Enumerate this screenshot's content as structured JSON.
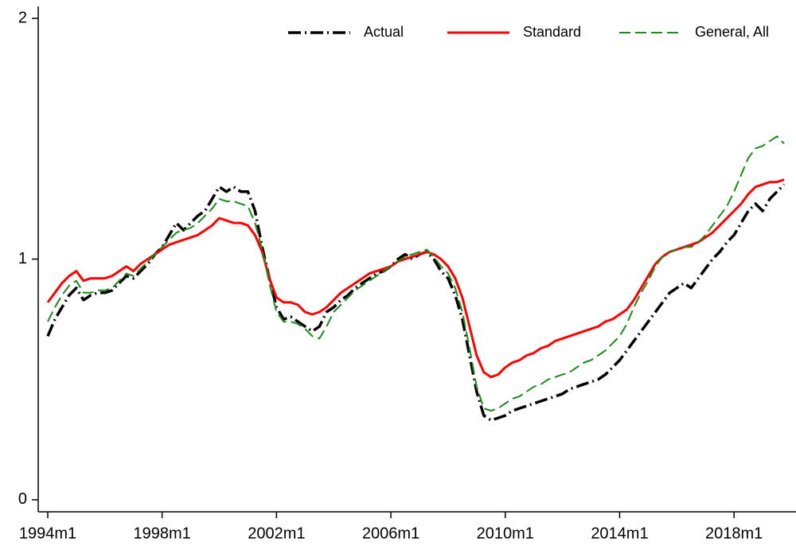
{
  "chart_data": {
    "type": "line",
    "x": [
      "1994m1",
      "1994m4",
      "1994m7",
      "1994m10",
      "1995m1",
      "1995m4",
      "1995m7",
      "1995m10",
      "1996m1",
      "1996m4",
      "1996m7",
      "1996m10",
      "1997m1",
      "1997m4",
      "1997m7",
      "1997m10",
      "1998m1",
      "1998m4",
      "1998m7",
      "1998m10",
      "1999m1",
      "1999m4",
      "1999m7",
      "1999m10",
      "2000m1",
      "2000m4",
      "2000m7",
      "2000m10",
      "2001m1",
      "2001m4",
      "2001m7",
      "2001m10",
      "2002m1",
      "2002m4",
      "2002m7",
      "2002m10",
      "2003m1",
      "2003m4",
      "2003m7",
      "2003m10",
      "2004m1",
      "2004m4",
      "2004m7",
      "2004m10",
      "2005m1",
      "2005m4",
      "2005m7",
      "2005m10",
      "2006m1",
      "2006m4",
      "2006m7",
      "2006m10",
      "2007m1",
      "2007m4",
      "2007m7",
      "2007m10",
      "2008m1",
      "2008m4",
      "2008m7",
      "2008m10",
      "2009m1",
      "2009m4",
      "2009m7",
      "2009m10",
      "2010m1",
      "2010m4",
      "2010m7",
      "2010m10",
      "2011m1",
      "2011m4",
      "2011m7",
      "2011m10",
      "2012m1",
      "2012m4",
      "2012m7",
      "2012m10",
      "2013m1",
      "2013m4",
      "2013m7",
      "2013m10",
      "2014m1",
      "2014m4",
      "2014m7",
      "2014m10",
      "2015m1",
      "2015m4",
      "2015m7",
      "2015m10",
      "2016m1",
      "2016m4",
      "2016m7",
      "2016m10",
      "2017m1",
      "2017m4",
      "2017m7",
      "2017m10",
      "2018m1",
      "2018m4",
      "2018m7",
      "2018m10",
      "2019m1",
      "2019m4",
      "2019m7",
      "2019m10"
    ],
    "series": [
      {
        "name": "Actual",
        "color": "#000000",
        "style": "dash-dot",
        "values": [
          0.68,
          0.75,
          0.8,
          0.85,
          0.88,
          0.83,
          0.85,
          0.86,
          0.86,
          0.87,
          0.9,
          0.93,
          0.92,
          0.95,
          0.98,
          1.02,
          1.05,
          1.1,
          1.15,
          1.12,
          1.15,
          1.18,
          1.2,
          1.25,
          1.3,
          1.28,
          1.3,
          1.28,
          1.28,
          1.2,
          1.05,
          0.92,
          0.8,
          0.75,
          0.76,
          0.74,
          0.72,
          0.7,
          0.72,
          0.78,
          0.8,
          0.83,
          0.85,
          0.88,
          0.9,
          0.92,
          0.94,
          0.95,
          0.97,
          1.0,
          1.02,
          1.0,
          1.02,
          1.03,
          1.0,
          0.95,
          0.92,
          0.85,
          0.75,
          0.6,
          0.45,
          0.35,
          0.33,
          0.34,
          0.35,
          0.37,
          0.38,
          0.39,
          0.4,
          0.41,
          0.42,
          0.43,
          0.44,
          0.46,
          0.47,
          0.48,
          0.49,
          0.5,
          0.52,
          0.55,
          0.58,
          0.62,
          0.66,
          0.7,
          0.74,
          0.78,
          0.82,
          0.86,
          0.88,
          0.9,
          0.88,
          0.92,
          0.96,
          1.0,
          1.03,
          1.07,
          1.1,
          1.15,
          1.2,
          1.23,
          1.2,
          1.25,
          1.28,
          1.31
        ]
      },
      {
        "name": "Standard",
        "color": "#ff0000",
        "style": "solid",
        "values": [
          0.82,
          0.86,
          0.9,
          0.93,
          0.95,
          0.91,
          0.92,
          0.92,
          0.92,
          0.93,
          0.95,
          0.97,
          0.95,
          0.98,
          1.0,
          1.02,
          1.04,
          1.06,
          1.07,
          1.08,
          1.09,
          1.1,
          1.12,
          1.14,
          1.17,
          1.16,
          1.15,
          1.15,
          1.14,
          1.1,
          1.03,
          0.92,
          0.84,
          0.82,
          0.82,
          0.81,
          0.78,
          0.77,
          0.78,
          0.8,
          0.83,
          0.86,
          0.88,
          0.9,
          0.92,
          0.94,
          0.95,
          0.96,
          0.97,
          0.99,
          1.0,
          1.01,
          1.02,
          1.03,
          1.02,
          1.0,
          0.97,
          0.92,
          0.84,
          0.72,
          0.6,
          0.53,
          0.51,
          0.52,
          0.55,
          0.57,
          0.58,
          0.6,
          0.61,
          0.63,
          0.64,
          0.66,
          0.67,
          0.68,
          0.69,
          0.7,
          0.71,
          0.72,
          0.74,
          0.75,
          0.77,
          0.79,
          0.83,
          0.88,
          0.93,
          0.98,
          1.01,
          1.03,
          1.04,
          1.05,
          1.06,
          1.07,
          1.09,
          1.11,
          1.14,
          1.17,
          1.2,
          1.23,
          1.27,
          1.3,
          1.31,
          1.32,
          1.32,
          1.33
        ]
      },
      {
        "name": "General, All",
        "color": "#1a8c1a",
        "style": "dashed",
        "values": [
          0.74,
          0.8,
          0.85,
          0.89,
          0.91,
          0.86,
          0.86,
          0.87,
          0.87,
          0.88,
          0.91,
          0.94,
          0.93,
          0.96,
          0.99,
          1.02,
          1.05,
          1.08,
          1.11,
          1.12,
          1.13,
          1.15,
          1.18,
          1.21,
          1.25,
          1.24,
          1.24,
          1.23,
          1.22,
          1.15,
          1.04,
          0.9,
          0.78,
          0.74,
          0.74,
          0.73,
          0.71,
          0.68,
          0.67,
          0.72,
          0.78,
          0.81,
          0.84,
          0.87,
          0.89,
          0.91,
          0.93,
          0.95,
          0.97,
          0.99,
          1.01,
          1.02,
          1.03,
          1.04,
          1.01,
          0.97,
          0.94,
          0.88,
          0.78,
          0.63,
          0.47,
          0.38,
          0.37,
          0.38,
          0.4,
          0.42,
          0.43,
          0.45,
          0.47,
          0.48,
          0.5,
          0.51,
          0.52,
          0.53,
          0.55,
          0.57,
          0.58,
          0.6,
          0.62,
          0.65,
          0.68,
          0.73,
          0.8,
          0.86,
          0.91,
          0.97,
          1.01,
          1.03,
          1.04,
          1.05,
          1.05,
          1.07,
          1.1,
          1.14,
          1.18,
          1.22,
          1.28,
          1.35,
          1.42,
          1.46,
          1.47,
          1.49,
          1.51,
          1.48
        ]
      }
    ],
    "xlim": [
      "1993m9",
      "2020m3"
    ],
    "xticks": [
      "1994m1",
      "1998m1",
      "2002m1",
      "2006m1",
      "2010m1",
      "2014m1",
      "2018m1"
    ],
    "ylim": [
      -0.05,
      2.05
    ],
    "yticks": [
      0,
      1,
      2
    ],
    "legend": "top"
  }
}
